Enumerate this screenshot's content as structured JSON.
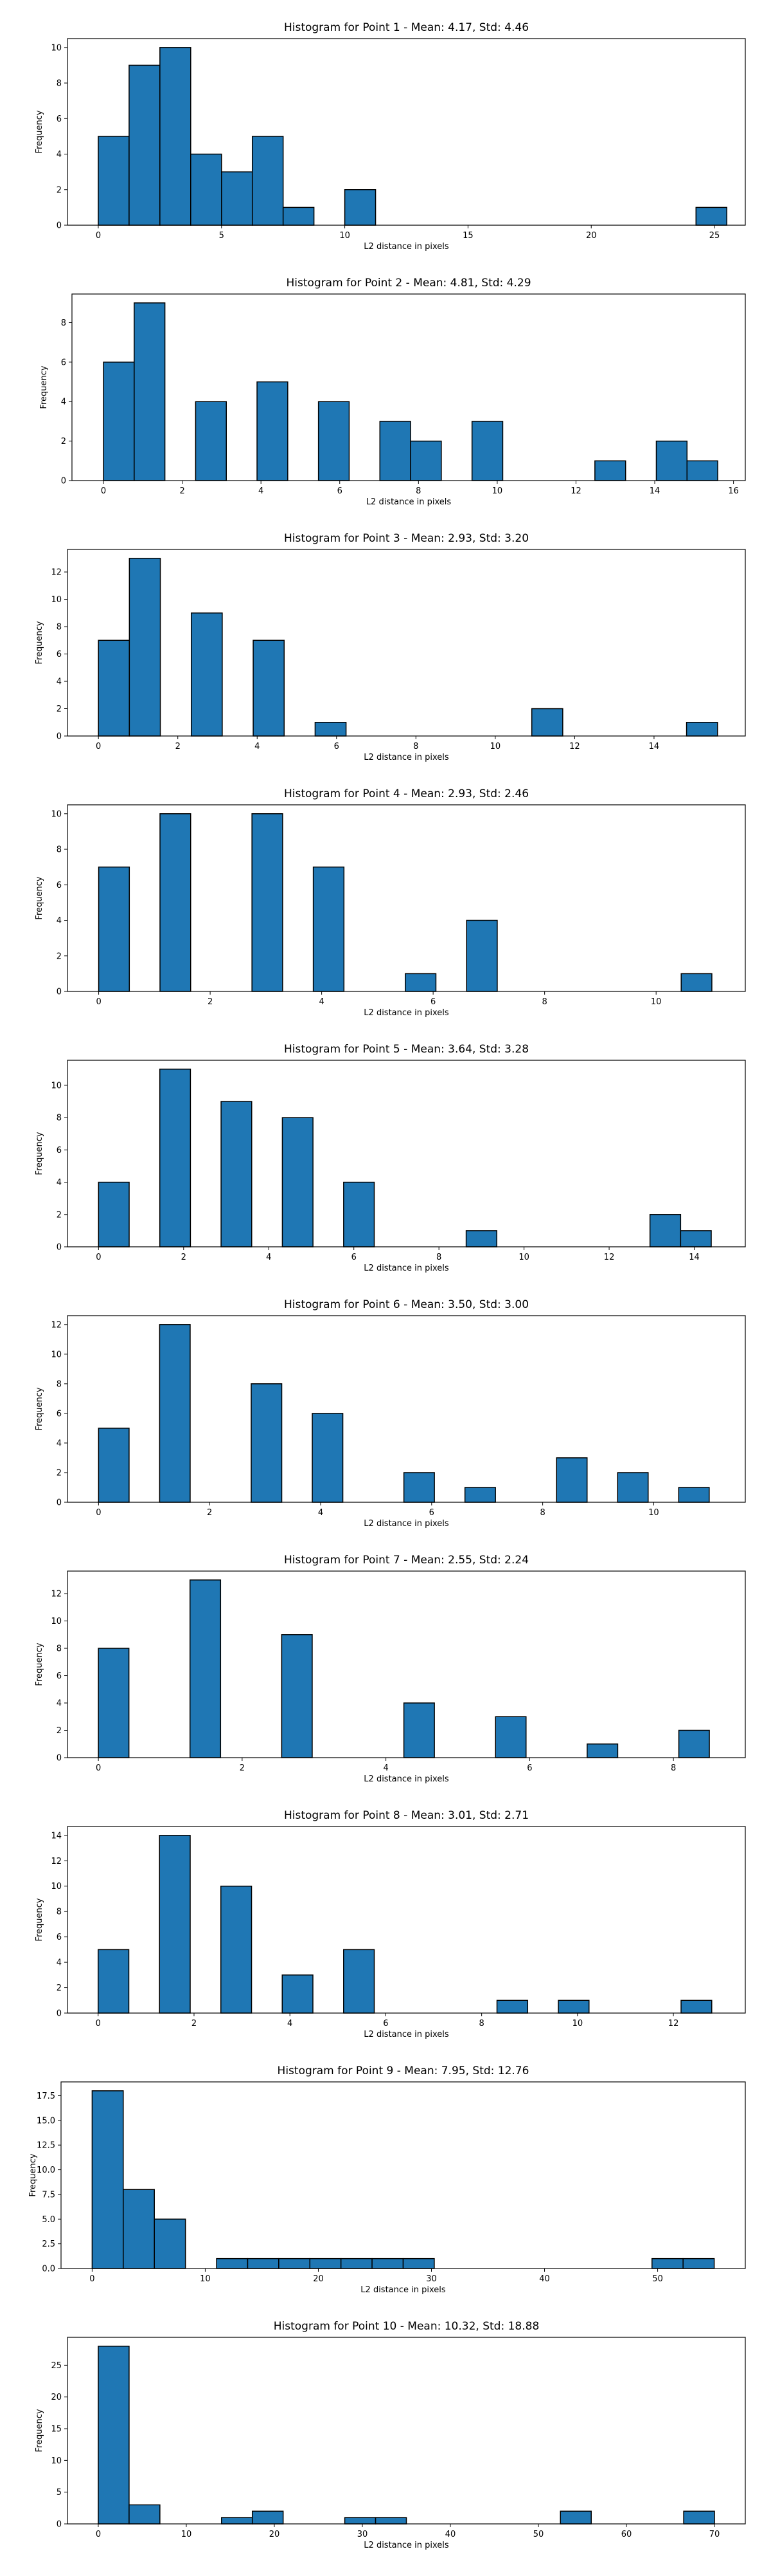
{
  "figure": {
    "background": "#ffffff",
    "bar_color": "#1f77b4",
    "edge_color": "#000000"
  },
  "chart_data": [
    {
      "type": "bar",
      "title": "Histogram for Point 1 - Mean: 4.17, Std: 4.46",
      "xlabel": "L2 distance in pixels",
      "ylabel": "Frequency",
      "xlim": [
        -1.25,
        26.25
      ],
      "ylim": [
        0,
        10.5
      ],
      "xticks": [
        0,
        5,
        10,
        15,
        20,
        25
      ],
      "xtick_labels": [
        "0",
        "5",
        "10",
        "15",
        "20",
        "25"
      ],
      "yticks": [
        0,
        2,
        4,
        6,
        8,
        10
      ],
      "ytick_labels": [
        "0",
        "2",
        "4",
        "6",
        "8",
        "10"
      ],
      "bins": [
        {
          "x0": 0.0,
          "x1": 1.25,
          "count": 5
        },
        {
          "x0": 1.25,
          "x1": 2.5,
          "count": 9
        },
        {
          "x0": 2.5,
          "x1": 3.75,
          "count": 10
        },
        {
          "x0": 3.75,
          "x1": 5.0,
          "count": 4
        },
        {
          "x0": 5.0,
          "x1": 6.25,
          "count": 3
        },
        {
          "x0": 6.25,
          "x1": 7.5,
          "count": 5
        },
        {
          "x0": 7.5,
          "x1": 8.75,
          "count": 1
        },
        {
          "x0": 10.0,
          "x1": 11.25,
          "count": 2
        },
        {
          "x0": 24.25,
          "x1": 25.5,
          "count": 1
        }
      ]
    },
    {
      "type": "bar",
      "title": "Histogram for Point 2 - Mean: 4.81, Std: 4.29",
      "xlabel": "L2 distance in pixels",
      "ylabel": "Frequency",
      "xlim": [
        -0.8,
        16.3
      ],
      "ylim": [
        0,
        9.45
      ],
      "xticks": [
        0,
        2,
        4,
        6,
        8,
        10,
        12,
        14,
        16
      ],
      "xtick_labels": [
        "0",
        "2",
        "4",
        "6",
        "8",
        "10",
        "12",
        "14",
        "16"
      ],
      "yticks": [
        0,
        2,
        4,
        6,
        8
      ],
      "ytick_labels": [
        "0",
        "2",
        "4",
        "6",
        "8"
      ],
      "bins": [
        {
          "x0": 0.0,
          "x1": 0.78,
          "count": 6
        },
        {
          "x0": 0.78,
          "x1": 1.56,
          "count": 9
        },
        {
          "x0": 2.34,
          "x1": 3.12,
          "count": 4
        },
        {
          "x0": 3.9,
          "x1": 4.68,
          "count": 5
        },
        {
          "x0": 5.46,
          "x1": 6.24,
          "count": 4
        },
        {
          "x0": 7.02,
          "x1": 7.8,
          "count": 3
        },
        {
          "x0": 7.8,
          "x1": 8.58,
          "count": 2
        },
        {
          "x0": 9.36,
          "x1": 10.14,
          "count": 3
        },
        {
          "x0": 12.48,
          "x1": 13.26,
          "count": 1
        },
        {
          "x0": 14.04,
          "x1": 14.82,
          "count": 2
        },
        {
          "x0": 14.82,
          "x1": 15.6,
          "count": 1
        }
      ]
    },
    {
      "type": "bar",
      "title": "Histogram for Point 3 - Mean: 2.93, Std: 3.20",
      "xlabel": "L2 distance in pixels",
      "ylabel": "Frequency",
      "xlim": [
        -0.78,
        16.3
      ],
      "ylim": [
        0,
        13.65
      ],
      "xticks": [
        0,
        2,
        4,
        6,
        8,
        10,
        12,
        14
      ],
      "xtick_labels": [
        "0",
        "2",
        "4",
        "6",
        "8",
        "10",
        "12",
        "14"
      ],
      "yticks": [
        0,
        2,
        4,
        6,
        8,
        10,
        12
      ],
      "ytick_labels": [
        "0",
        "2",
        "4",
        "6",
        "8",
        "10",
        "12"
      ],
      "bins": [
        {
          "x0": 0.0,
          "x1": 0.78,
          "count": 7
        },
        {
          "x0": 0.78,
          "x1": 1.56,
          "count": 13
        },
        {
          "x0": 2.34,
          "x1": 3.12,
          "count": 9
        },
        {
          "x0": 3.9,
          "x1": 4.68,
          "count": 7
        },
        {
          "x0": 5.46,
          "x1": 6.24,
          "count": 1
        },
        {
          "x0": 10.92,
          "x1": 11.7,
          "count": 2
        },
        {
          "x0": 14.82,
          "x1": 15.6,
          "count": 1
        }
      ]
    },
    {
      "type": "bar",
      "title": "Histogram for Point 4 - Mean: 2.93, Std: 2.46",
      "xlabel": "L2 distance in pixels",
      "ylabel": "Frequency",
      "xlim": [
        -0.56,
        11.6
      ],
      "ylim": [
        0,
        10.5
      ],
      "xticks": [
        0,
        2,
        4,
        6,
        8,
        10
      ],
      "xtick_labels": [
        "0",
        "2",
        "4",
        "6",
        "8",
        "10"
      ],
      "yticks": [
        0,
        2,
        4,
        6,
        8,
        10
      ],
      "ytick_labels": [
        "0",
        "2",
        "4",
        "6",
        "8",
        "10"
      ],
      "bins": [
        {
          "x0": 0.0,
          "x1": 0.55,
          "count": 7
        },
        {
          "x0": 1.1,
          "x1": 1.65,
          "count": 10
        },
        {
          "x0": 2.75,
          "x1": 3.3,
          "count": 10
        },
        {
          "x0": 3.85,
          "x1": 4.4,
          "count": 7
        },
        {
          "x0": 5.5,
          "x1": 6.05,
          "count": 1
        },
        {
          "x0": 6.6,
          "x1": 7.15,
          "count": 4
        },
        {
          "x0": 10.45,
          "x1": 11.0,
          "count": 1
        }
      ]
    },
    {
      "type": "bar",
      "title": "Histogram for Point 5 - Mean: 3.64, Std: 3.28",
      "xlabel": "L2 distance in pixels",
      "ylabel": "Frequency",
      "xlim": [
        -0.73,
        15.2
      ],
      "ylim": [
        0,
        11.55
      ],
      "xticks": [
        0,
        2,
        4,
        6,
        8,
        10,
        12,
        14
      ],
      "xtick_labels": [
        "0",
        "2",
        "4",
        "6",
        "8",
        "10",
        "12",
        "14"
      ],
      "yticks": [
        0,
        2,
        4,
        6,
        8,
        10
      ],
      "ytick_labels": [
        "0",
        "2",
        "4",
        "6",
        "8",
        "10"
      ],
      "bins": [
        {
          "x0": 0.0,
          "x1": 0.72,
          "count": 4
        },
        {
          "x0": 1.44,
          "x1": 2.16,
          "count": 11
        },
        {
          "x0": 2.88,
          "x1": 3.6,
          "count": 9
        },
        {
          "x0": 4.32,
          "x1": 5.04,
          "count": 8
        },
        {
          "x0": 5.76,
          "x1": 6.48,
          "count": 4
        },
        {
          "x0": 8.64,
          "x1": 9.36,
          "count": 1
        },
        {
          "x0": 12.96,
          "x1": 13.68,
          "count": 2
        },
        {
          "x0": 13.68,
          "x1": 14.4,
          "count": 1
        }
      ]
    },
    {
      "type": "bar",
      "title": "Histogram for Point 6 - Mean: 3.50, Std: 3.00",
      "xlabel": "L2 distance in pixels",
      "ylabel": "Frequency",
      "xlim": [
        -0.56,
        11.65
      ],
      "ylim": [
        0,
        12.6
      ],
      "xticks": [
        0,
        2,
        4,
        6,
        8,
        10
      ],
      "xtick_labels": [
        "0",
        "2",
        "4",
        "6",
        "8",
        "10"
      ],
      "yticks": [
        0,
        2,
        4,
        6,
        8,
        10,
        12
      ],
      "ytick_labels": [
        "0",
        "2",
        "4",
        "6",
        "8",
        "10",
        "12"
      ],
      "bins": [
        {
          "x0": 0.0,
          "x1": 0.55,
          "count": 5
        },
        {
          "x0": 1.1,
          "x1": 1.65,
          "count": 12
        },
        {
          "x0": 2.75,
          "x1": 3.3,
          "count": 8
        },
        {
          "x0": 3.85,
          "x1": 4.4,
          "count": 6
        },
        {
          "x0": 5.5,
          "x1": 6.05,
          "count": 2
        },
        {
          "x0": 6.6,
          "x1": 7.15,
          "count": 1
        },
        {
          "x0": 8.25,
          "x1": 8.8,
          "count": 3
        },
        {
          "x0": 9.35,
          "x1": 9.9,
          "count": 2
        },
        {
          "x0": 10.45,
          "x1": 11.0,
          "count": 1
        }
      ]
    },
    {
      "type": "bar",
      "title": "Histogram for Point 7 - Mean: 2.55, Std: 2.24",
      "xlabel": "L2 distance in pixels",
      "ylabel": "Frequency",
      "xlim": [
        -0.43,
        9.0
      ],
      "ylim": [
        0,
        13.65
      ],
      "xticks": [
        0,
        2,
        4,
        6,
        8
      ],
      "xtick_labels": [
        "0",
        "2",
        "4",
        "6",
        "8"
      ],
      "yticks": [
        0,
        2,
        4,
        6,
        8,
        10,
        12
      ],
      "ytick_labels": [
        "0",
        "2",
        "4",
        "6",
        "8",
        "10",
        "12"
      ],
      "bins": [
        {
          "x0": 0.0,
          "x1": 0.425,
          "count": 8
        },
        {
          "x0": 1.275,
          "x1": 1.7,
          "count": 13
        },
        {
          "x0": 2.55,
          "x1": 2.975,
          "count": 9
        },
        {
          "x0": 4.25,
          "x1": 4.675,
          "count": 4
        },
        {
          "x0": 5.525,
          "x1": 5.95,
          "count": 3
        },
        {
          "x0": 6.8,
          "x1": 7.225,
          "count": 1
        },
        {
          "x0": 8.075,
          "x1": 8.5,
          "count": 2
        }
      ]
    },
    {
      "type": "bar",
      "title": "Histogram for Point 8 - Mean: 3.01, Std: 2.71",
      "xlabel": "L2 distance in pixels",
      "ylabel": "Frequency",
      "xlim": [
        -0.64,
        13.5
      ],
      "ylim": [
        0,
        14.7
      ],
      "xticks": [
        0,
        2,
        4,
        6,
        8,
        10,
        12
      ],
      "xtick_labels": [
        "0",
        "2",
        "4",
        "6",
        "8",
        "10",
        "12"
      ],
      "yticks": [
        0,
        2,
        4,
        6,
        8,
        10,
        12,
        14
      ],
      "ytick_labels": [
        "0",
        "2",
        "4",
        "6",
        "8",
        "10",
        "12",
        "14"
      ],
      "bins": [
        {
          "x0": 0.0,
          "x1": 0.64,
          "count": 5
        },
        {
          "x0": 1.28,
          "x1": 1.92,
          "count": 14
        },
        {
          "x0": 2.56,
          "x1": 3.2,
          "count": 10
        },
        {
          "x0": 3.84,
          "x1": 4.48,
          "count": 3
        },
        {
          "x0": 5.12,
          "x1": 5.76,
          "count": 5
        },
        {
          "x0": 8.32,
          "x1": 8.96,
          "count": 1
        },
        {
          "x0": 9.6,
          "x1": 10.24,
          "count": 1
        },
        {
          "x0": 12.16,
          "x1": 12.8,
          "count": 1
        }
      ]
    },
    {
      "type": "bar",
      "title": "Histogram for Point 9 - Mean: 7.95, Std: 12.76",
      "xlabel": "L2 distance in pixels",
      "ylabel": "Frequency",
      "xlim": [
        -2.75,
        57.75
      ],
      "ylim": [
        0,
        18.9
      ],
      "xticks": [
        0,
        10,
        20,
        30,
        40,
        50
      ],
      "xtick_labels": [
        "0",
        "10",
        "20",
        "30",
        "40",
        "50"
      ],
      "yticks": [
        0,
        2.5,
        5,
        7.5,
        10,
        12.5,
        15,
        17.5
      ],
      "ytick_labels": [
        "0.0",
        "2.5",
        "5.0",
        "7.5",
        "10.0",
        "12.5",
        "15.0",
        "17.5"
      ],
      "bins": [
        {
          "x0": 0.0,
          "x1": 2.75,
          "count": 18
        },
        {
          "x0": 2.75,
          "x1": 5.5,
          "count": 8
        },
        {
          "x0": 5.5,
          "x1": 8.25,
          "count": 5
        },
        {
          "x0": 11.0,
          "x1": 13.75,
          "count": 1
        },
        {
          "x0": 13.75,
          "x1": 16.5,
          "count": 1
        },
        {
          "x0": 16.5,
          "x1": 19.25,
          "count": 1
        },
        {
          "x0": 19.25,
          "x1": 22.0,
          "count": 1
        },
        {
          "x0": 22.0,
          "x1": 24.75,
          "count": 1
        },
        {
          "x0": 24.75,
          "x1": 27.5,
          "count": 1
        },
        {
          "x0": 27.5,
          "x1": 30.25,
          "count": 1
        },
        {
          "x0": 49.5,
          "x1": 52.25,
          "count": 1
        },
        {
          "x0": 52.25,
          "x1": 55.0,
          "count": 1
        }
      ]
    },
    {
      "type": "bar",
      "title": "Histogram for Point 10 - Mean: 10.32, Std: 18.88",
      "xlabel": "L2 distance in pixels",
      "ylabel": "Frequency",
      "xlim": [
        -3.5,
        73.5
      ],
      "ylim": [
        0,
        29.4
      ],
      "xticks": [
        0,
        10,
        20,
        30,
        40,
        50,
        60,
        70
      ],
      "xtick_labels": [
        "0",
        "10",
        "20",
        "30",
        "40",
        "50",
        "60",
        "70"
      ],
      "yticks": [
        0,
        5,
        10,
        15,
        20,
        25
      ],
      "ytick_labels": [
        "0",
        "5",
        "10",
        "15",
        "20",
        "25"
      ],
      "bins": [
        {
          "x0": 0.0,
          "x1": 3.5,
          "count": 28
        },
        {
          "x0": 3.5,
          "x1": 7.0,
          "count": 3
        },
        {
          "x0": 14.0,
          "x1": 17.5,
          "count": 1
        },
        {
          "x0": 17.5,
          "x1": 21.0,
          "count": 2
        },
        {
          "x0": 28.0,
          "x1": 31.5,
          "count": 1
        },
        {
          "x0": 31.5,
          "x1": 35.0,
          "count": 1
        },
        {
          "x0": 52.5,
          "x1": 56.0,
          "count": 2
        },
        {
          "x0": 66.5,
          "x1": 70.0,
          "count": 2
        }
      ]
    }
  ]
}
